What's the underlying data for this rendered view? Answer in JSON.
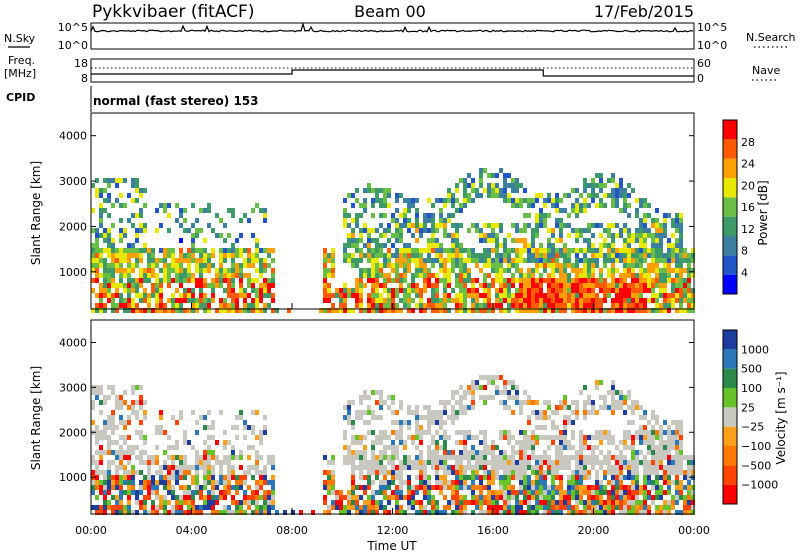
{
  "header": {
    "station": "Pykkvibaer (fitACF)",
    "beam": "Beam 00",
    "date": "17/Feb/2015"
  },
  "aux": {
    "nsky_label": "N.Sky",
    "nsky_ticks": [
      "10^5",
      "10^0"
    ],
    "nsearch_label": "N.Search",
    "nsearch_ticks": [
      "10^5",
      "10^0"
    ],
    "freq_label": "Freq.",
    "freq_unit": "[MHz]",
    "freq_ticks": [
      "18",
      "8"
    ],
    "nave_label": "Nave",
    "nave_ticks": [
      "60",
      "0"
    ],
    "cpid_label": "CPID",
    "cpid_text": "normal (fast stereo) 153"
  },
  "colors": {
    "power_scale": [
      "#0000ff",
      "#2255c8",
      "#3c7fa0",
      "#3f9a6a",
      "#6abe46",
      "#e8e800",
      "#ffa000",
      "#ff5a00",
      "#ff0000"
    ],
    "velocity_scale": [
      "#1f3d9e",
      "#2a78b8",
      "#2b8a4a",
      "#66c42a",
      "#c8c8c0",
      "#ffa01a",
      "#ff7a00",
      "#ff4400",
      "#ff0000"
    ]
  },
  "chart_data": [
    {
      "type": "heatmap",
      "name": "power",
      "ylabel": "Slant Range [km]",
      "yticks": [
        "1000",
        "2000",
        "3000",
        "4000"
      ],
      "ylim": [
        180,
        4500
      ],
      "colorbar_label": "Power [dB]",
      "colorbar_ticks": [
        "4",
        "8",
        "12",
        "16",
        "20",
        "24",
        "28"
      ],
      "colorbar_range": [
        0,
        30
      ]
    },
    {
      "type": "heatmap",
      "name": "velocity",
      "ylabel": "Slant Range [km]",
      "yticks": [
        "1000",
        "2000",
        "3000",
        "4000"
      ],
      "ylim": [
        180,
        4500
      ],
      "xlabel": "Time UT",
      "xticks": [
        "00:00",
        "04:00",
        "08:00",
        "12:00",
        "16:00",
        "20:00",
        "00:00"
      ],
      "colorbar_label": "Velocity [m s⁻¹]",
      "colorbar_ticks": [
        "1000",
        "500",
        "100",
        "25",
        "−25",
        "−100",
        "−500",
        "−1000"
      ]
    }
  ]
}
